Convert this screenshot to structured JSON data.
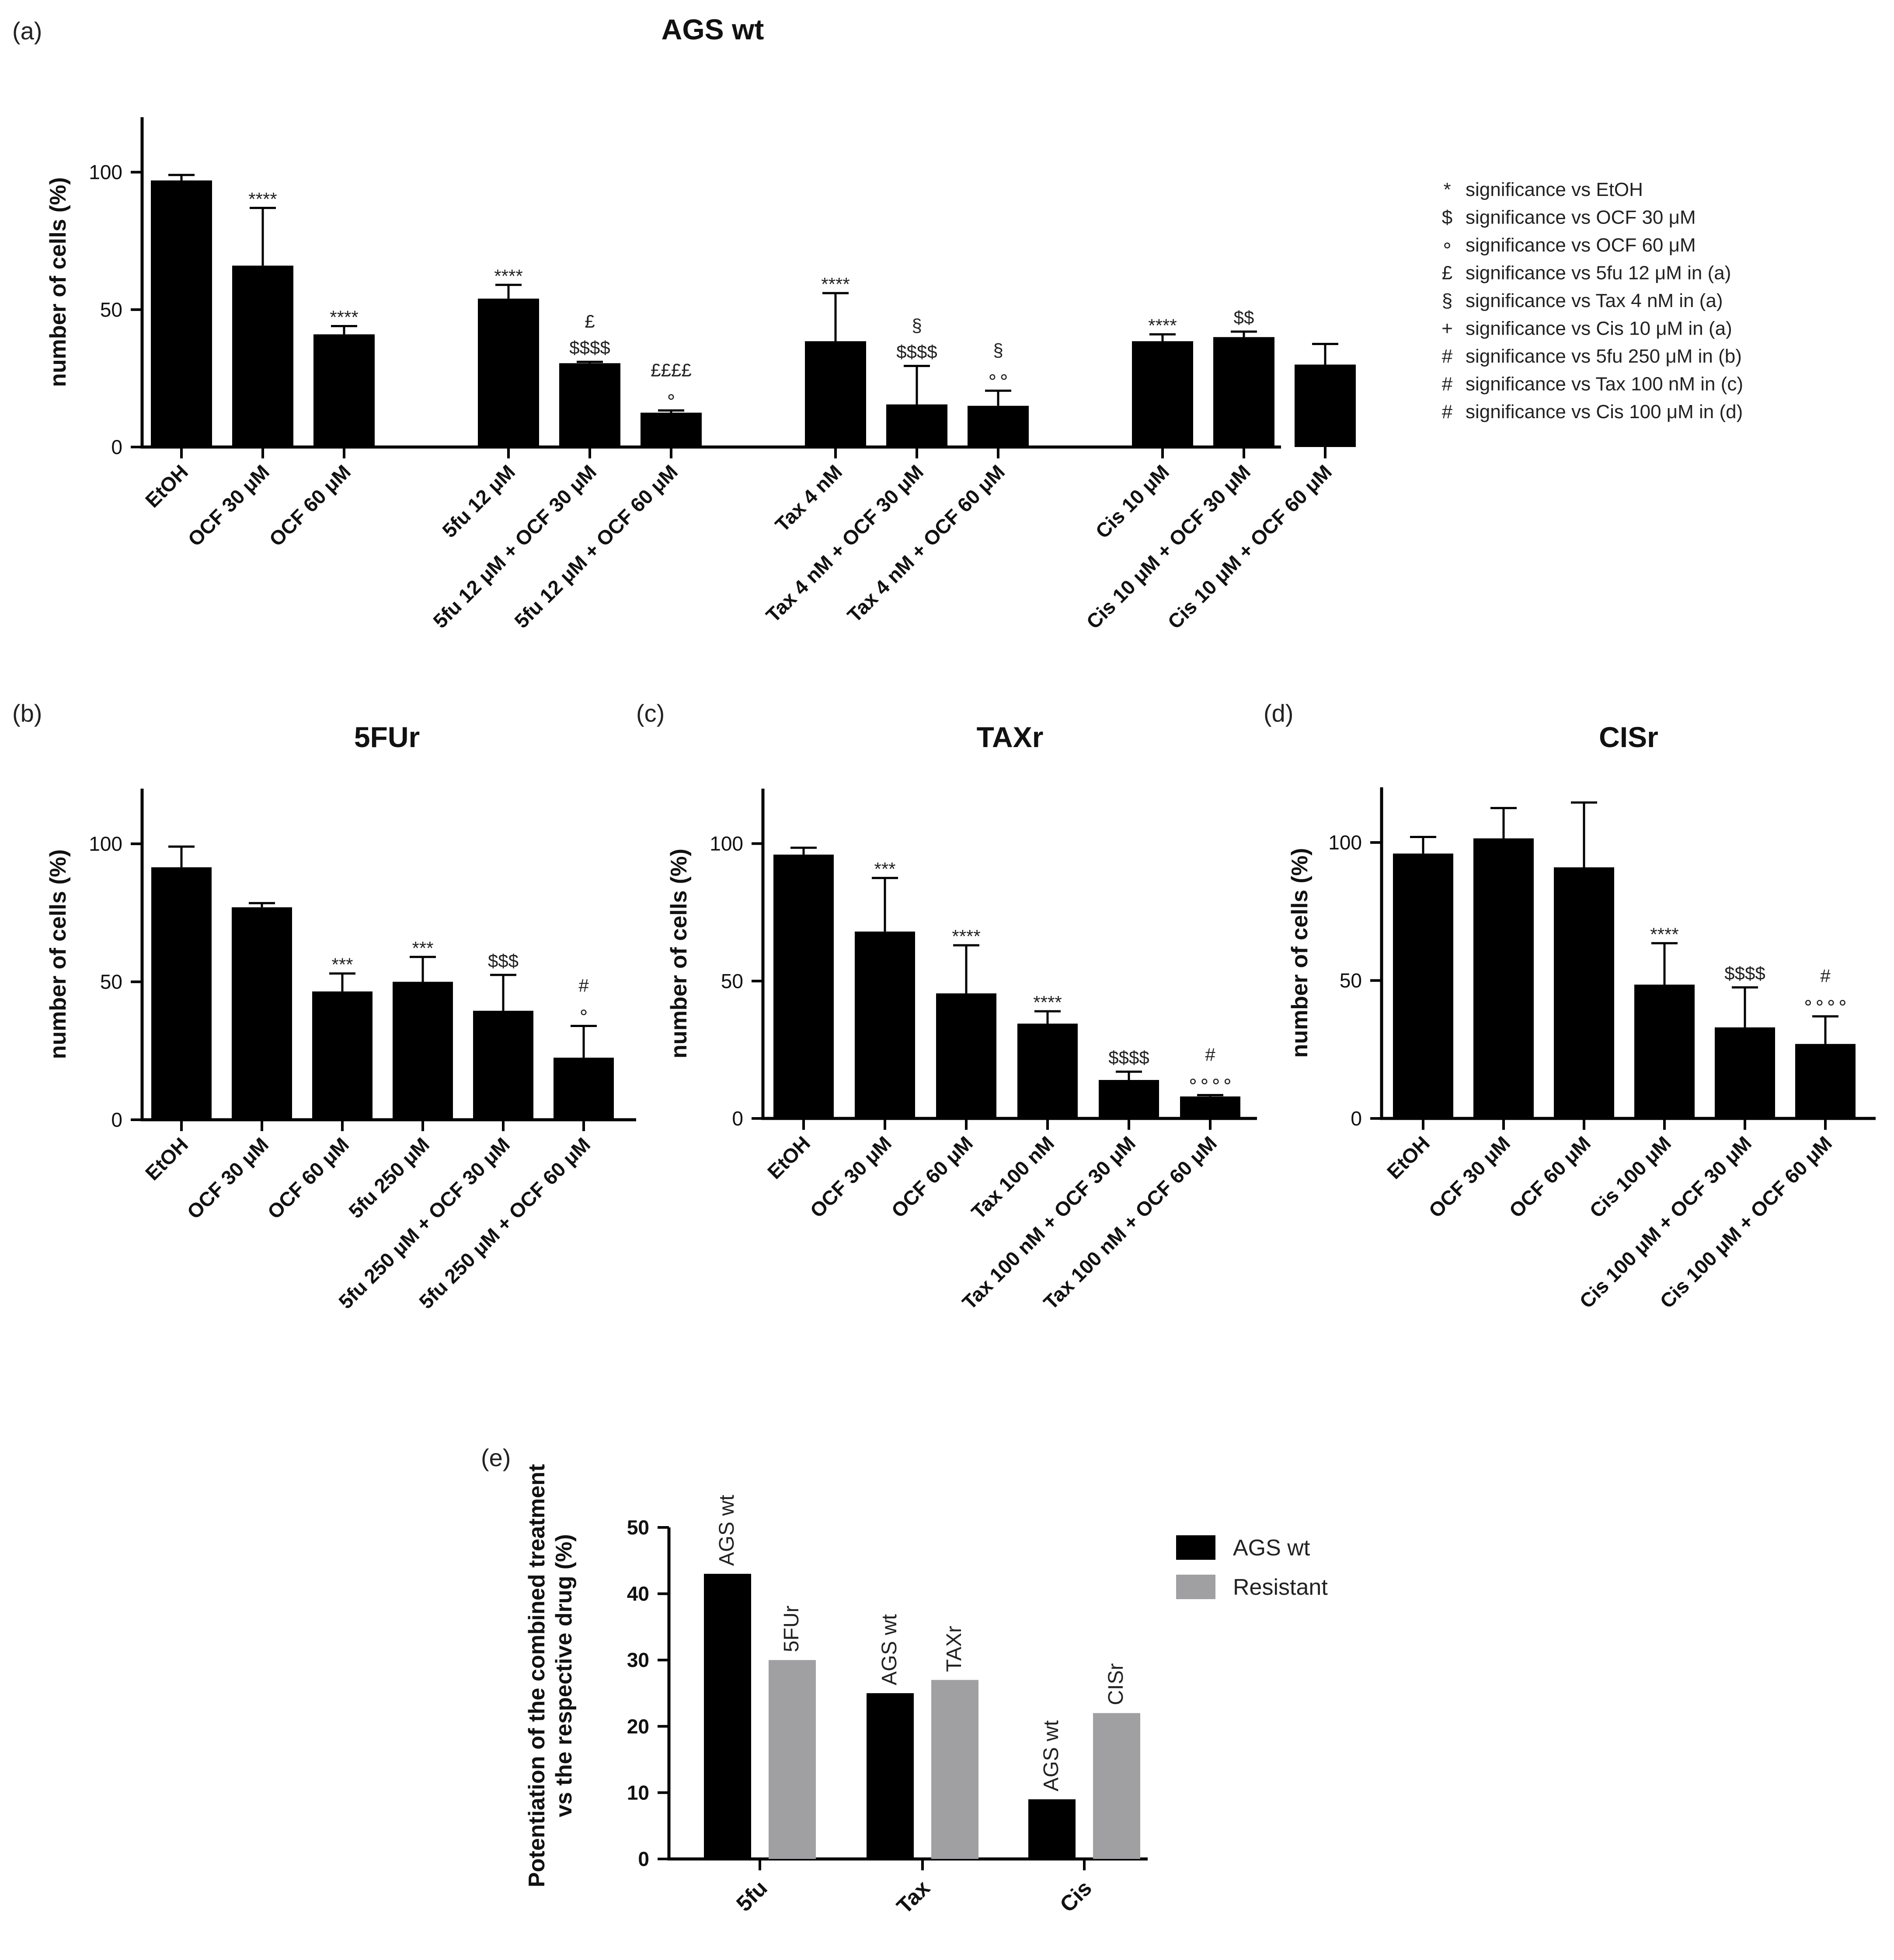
{
  "legend_symbols": {
    "items": [
      {
        "symbol": "*",
        "text": "significance vs EtOH"
      },
      {
        "symbol": "$",
        "text": "significance vs OCF 30 μM"
      },
      {
        "symbol": "∘",
        "text": "significance vs OCF 60 μM"
      },
      {
        "symbol": "£",
        "text": "significance vs 5fu 12 μM in (a)"
      },
      {
        "symbol": "§",
        "text": "significance vs Tax 4 nM in (a)"
      },
      {
        "symbol": "+",
        "text": "significance vs Cis 10 μM in (a)"
      },
      {
        "symbol": "#",
        "text": "significance vs 5fu 250 μM in (b)"
      },
      {
        "symbol": "#",
        "text": "significance vs Tax 100 nM in (c)"
      },
      {
        "symbol": "#",
        "text": "significance vs Cis 100 μM in (d)"
      }
    ]
  },
  "chart_data": [
    {
      "panel": "(a)",
      "type": "bar",
      "title": "AGS wt",
      "ylabel": "number of cells (%)",
      "ylim": [
        0,
        120
      ],
      "yticks": [
        0,
        50,
        100
      ],
      "bar_color": "#000000",
      "categories": [
        "EtOH",
        "OCF 30 μM",
        "OCF 60 μM",
        "5fu 12 μM",
        "5fu 12 μM + OCF 30 μM",
        "5fu 12 μM + OCF 60 μM",
        "Tax 4 nM",
        "Tax 4 nM + OCF 30 μM",
        "Tax 4 nM + OCF 60 μM",
        "Cis 10 μM",
        "Cis 10 μM + OCF 30 μM",
        "Cis 10 μM + OCF 60 μM"
      ],
      "groups": [
        3,
        3,
        3,
        3
      ],
      "values": [
        97,
        66,
        41,
        54,
        30.5,
        12.5,
        38.5,
        15.5,
        15,
        38.5,
        40,
        30
      ],
      "errors": [
        2,
        21,
        3,
        5,
        0.5,
        0.8,
        17.5,
        14,
        5.5,
        2.5,
        2,
        7.5
      ],
      "annotations": [
        [],
        [
          "****"
        ],
        [
          "****"
        ],
        [
          "****"
        ],
        [
          "$$$$",
          "£"
        ],
        [
          "∘",
          "££££"
        ],
        [
          "****"
        ],
        [
          "$$$$",
          "§"
        ],
        [
          "∘∘",
          "§"
        ],
        [
          "****"
        ],
        [
          "$$"
        ],
        []
      ]
    },
    {
      "panel": "(b)",
      "type": "bar",
      "title": "5FUr",
      "ylabel": "number of cells (%)",
      "ylim": [
        0,
        120
      ],
      "yticks": [
        0,
        50,
        100
      ],
      "bar_color": "#000000",
      "categories": [
        "EtOH",
        "OCF 30 μM",
        "OCF 60 μM",
        "5fu 250 μM",
        "5fu 250 μM + OCF 30 μM",
        "5fu 250 μM + OCF 60 μM"
      ],
      "values": [
        91.5,
        77,
        46.5,
        50,
        39.5,
        22.5
      ],
      "errors": [
        7.5,
        1.5,
        6.5,
        9,
        13,
        11.5
      ],
      "annotations": [
        [],
        [],
        [
          "***"
        ],
        [
          "***"
        ],
        [
          "$$$"
        ],
        [
          "∘",
          "#"
        ]
      ]
    },
    {
      "panel": "(c)",
      "type": "bar",
      "title": "TAXr",
      "ylabel": "number of cells (%)",
      "ylim": [
        0,
        120
      ],
      "yticks": [
        0,
        50,
        100
      ],
      "bar_color": "#000000",
      "categories": [
        "EtOH",
        "OCF 30 μM",
        "OCF 60 μM",
        "Tax 100 nM",
        "Tax 100 nM + OCF 30 μM",
        "Tax 100 nM + OCF 60 μM"
      ],
      "values": [
        96,
        68,
        45.5,
        34.5,
        14,
        8
      ],
      "errors": [
        2.5,
        19.5,
        17.5,
        4.5,
        3,
        0.5
      ],
      "annotations": [
        [],
        [
          "***"
        ],
        [
          "****"
        ],
        [
          "****"
        ],
        [
          "$$$$"
        ],
        [
          "∘∘∘∘",
          "#"
        ]
      ]
    },
    {
      "panel": "(d)",
      "type": "bar",
      "title": "CISr",
      "ylabel": "number of cells (%)",
      "ylim": [
        0,
        120
      ],
      "yticks": [
        0,
        50,
        100
      ],
      "bar_color": "#000000",
      "categories": [
        "EtOH",
        "OCF 30 μM",
        "OCF 60 μM",
        "Cis 100 μM",
        "Cis 100 μM + OCF 30 μM",
        "Cis 100 μM + OCF 60 μM"
      ],
      "values": [
        96,
        101.5,
        91,
        48.5,
        33,
        27
      ],
      "errors": [
        6,
        11,
        23.5,
        15,
        14.5,
        10
      ],
      "annotations": [
        [],
        [],
        [],
        [
          "****"
        ],
        [
          "$$$$"
        ],
        [
          "∘∘∘∘",
          "#"
        ]
      ]
    },
    {
      "panel": "(e)",
      "type": "bar",
      "title": "",
      "ylabel": "Potentiation of the combined treatment vs the respective drug (%)",
      "ylim": [
        0,
        50
      ],
      "yticks": [
        0,
        10,
        20,
        30,
        40,
        50
      ],
      "categories": [
        "5fu",
        "Tax",
        "Cis"
      ],
      "series": [
        {
          "name": "AGS wt",
          "color": "#000000",
          "values": [
            43,
            25,
            9
          ],
          "bar_labels": [
            "AGS wt",
            "AGS wt",
            "AGS wt"
          ]
        },
        {
          "name": "Resistant",
          "color": "#a0a0a3",
          "values": [
            30,
            27,
            22
          ],
          "bar_labels": [
            "5FUr",
            "TAXr",
            "CISr"
          ]
        }
      ],
      "legend_position": "right"
    }
  ]
}
